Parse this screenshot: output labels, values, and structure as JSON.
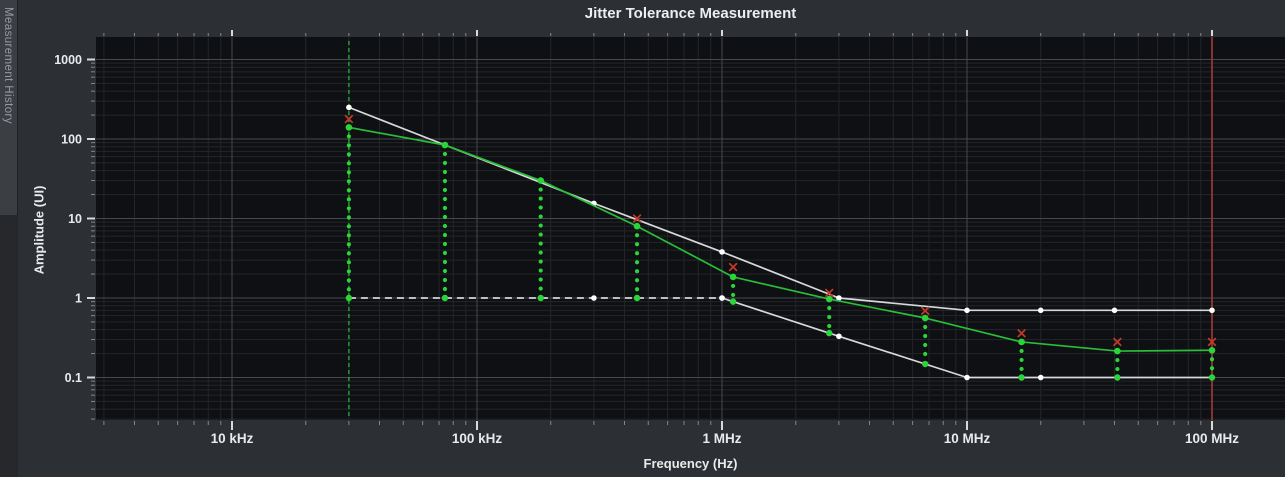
{
  "sidebar": {
    "tab_label": "Measurement History"
  },
  "colors": {
    "panel_bg": "#2c2f34",
    "plot_bg": "#0f1013",
    "sidebar_tab_bg": "#3b3e43",
    "sidebar_bg": "#26282c",
    "grid_major": "#45484e",
    "grid_minor": "#232529",
    "tick_minor": "#85898e",
    "tick_major": "#d8d9db",
    "text": "#e9eaec",
    "muted_text": "#969aa0",
    "mask": "#d7d8da",
    "mask_dot": "#ffffff",
    "measured_green": "#29bd39",
    "scan_dot_green": "#2bd43b",
    "fail_red": "#c43a28",
    "cursor_red": "#a33b38"
  },
  "chart_data": {
    "type": "line",
    "title": "Jitter Tolerance Measurement",
    "xlabel": "Frequency (Hz)",
    "ylabel": "Amplitude (UI)",
    "x_scale": "log",
    "y_scale": "log",
    "xlim_hz": [
      2800,
      198000000
    ],
    "ylim_ui": [
      0.029,
      1900
    ],
    "grid": "log major + minor, on",
    "legend": "none",
    "x_ticks": [
      {
        "hz": 10000,
        "label": "10 kHz"
      },
      {
        "hz": 100000,
        "label": "100 kHz"
      },
      {
        "hz": 1000000,
        "label": "1 MHz"
      },
      {
        "hz": 10000000,
        "label": "10 MHz"
      },
      {
        "hz": 100000000,
        "label": "100 MHz"
      }
    ],
    "y_ticks": [
      {
        "ui": 1000,
        "label": "1000"
      },
      {
        "ui": 100,
        "label": "100"
      },
      {
        "ui": 10,
        "label": "10"
      },
      {
        "ui": 1,
        "label": "1"
      },
      {
        "ui": 0.1,
        "label": "0.1"
      }
    ],
    "series": [
      {
        "id": "mask_upper",
        "name": "tolerance mask upper limit",
        "style": "solid+dots",
        "color": "#d7d8da",
        "points_hz_ui": [
          [
            30000,
            250
          ],
          [
            300000,
            15.5
          ],
          [
            1000000,
            3.8
          ],
          [
            3000000,
            1.0
          ],
          [
            10000000,
            0.7
          ],
          [
            20000000,
            0.7
          ],
          [
            40000000,
            0.7
          ],
          [
            100000000,
            0.7
          ]
        ]
      },
      {
        "id": "mask_lower_flat",
        "name": "tolerance mask lower limit (1 UI segment)",
        "style": "dashed+dots",
        "color": "#d7d8da",
        "points_hz_ui": [
          [
            30000,
            1.0
          ],
          [
            300000,
            1.0
          ],
          [
            1000000,
            1.0
          ]
        ]
      },
      {
        "id": "mask_lower",
        "name": "tolerance mask lower limit",
        "style": "solid+dots",
        "color": "#d7d8da",
        "points_hz_ui": [
          [
            1000000,
            1.0
          ],
          [
            3000000,
            0.33
          ],
          [
            10000000,
            0.1
          ],
          [
            20000000,
            0.1
          ],
          [
            100000000,
            0.1
          ]
        ]
      },
      {
        "id": "measured",
        "name": "measured jitter tolerance (pass points)",
        "style": "solid+dots",
        "color": "#29bd39",
        "points_hz_ui": [
          [
            30000,
            140
          ],
          [
            74000,
            84
          ],
          [
            182000,
            30
          ],
          [
            450000,
            8.0
          ],
          [
            1110000,
            1.84
          ],
          [
            2740000,
            0.97
          ],
          [
            6750000,
            0.56
          ],
          [
            16700000,
            0.28
          ],
          [
            41100000,
            0.215
          ],
          [
            100000000,
            0.22
          ]
        ]
      },
      {
        "id": "fail",
        "name": "fail points",
        "style": "x-markers",
        "color": "#c43a28",
        "points_hz_ui": [
          [
            30000,
            178
          ],
          [
            450000,
            10.0
          ],
          [
            1110000,
            2.45
          ],
          [
            2740000,
            1.16
          ],
          [
            6750000,
            0.69
          ],
          [
            16700000,
            0.36
          ],
          [
            41100000,
            0.28
          ],
          [
            100000000,
            0.28
          ]
        ]
      }
    ],
    "scan_trace": {
      "description": "dotted vertical scan columns from each pass point down to the lower mask",
      "color": "#2bd43b"
    },
    "annotations": {
      "start_frequency_line": {
        "hz": 30000,
        "style": "dashed-vertical",
        "color": "#29bd39"
      },
      "cursor_line": {
        "hz": 100000000,
        "style": "solid-vertical",
        "color": "#a33b38"
      }
    }
  }
}
